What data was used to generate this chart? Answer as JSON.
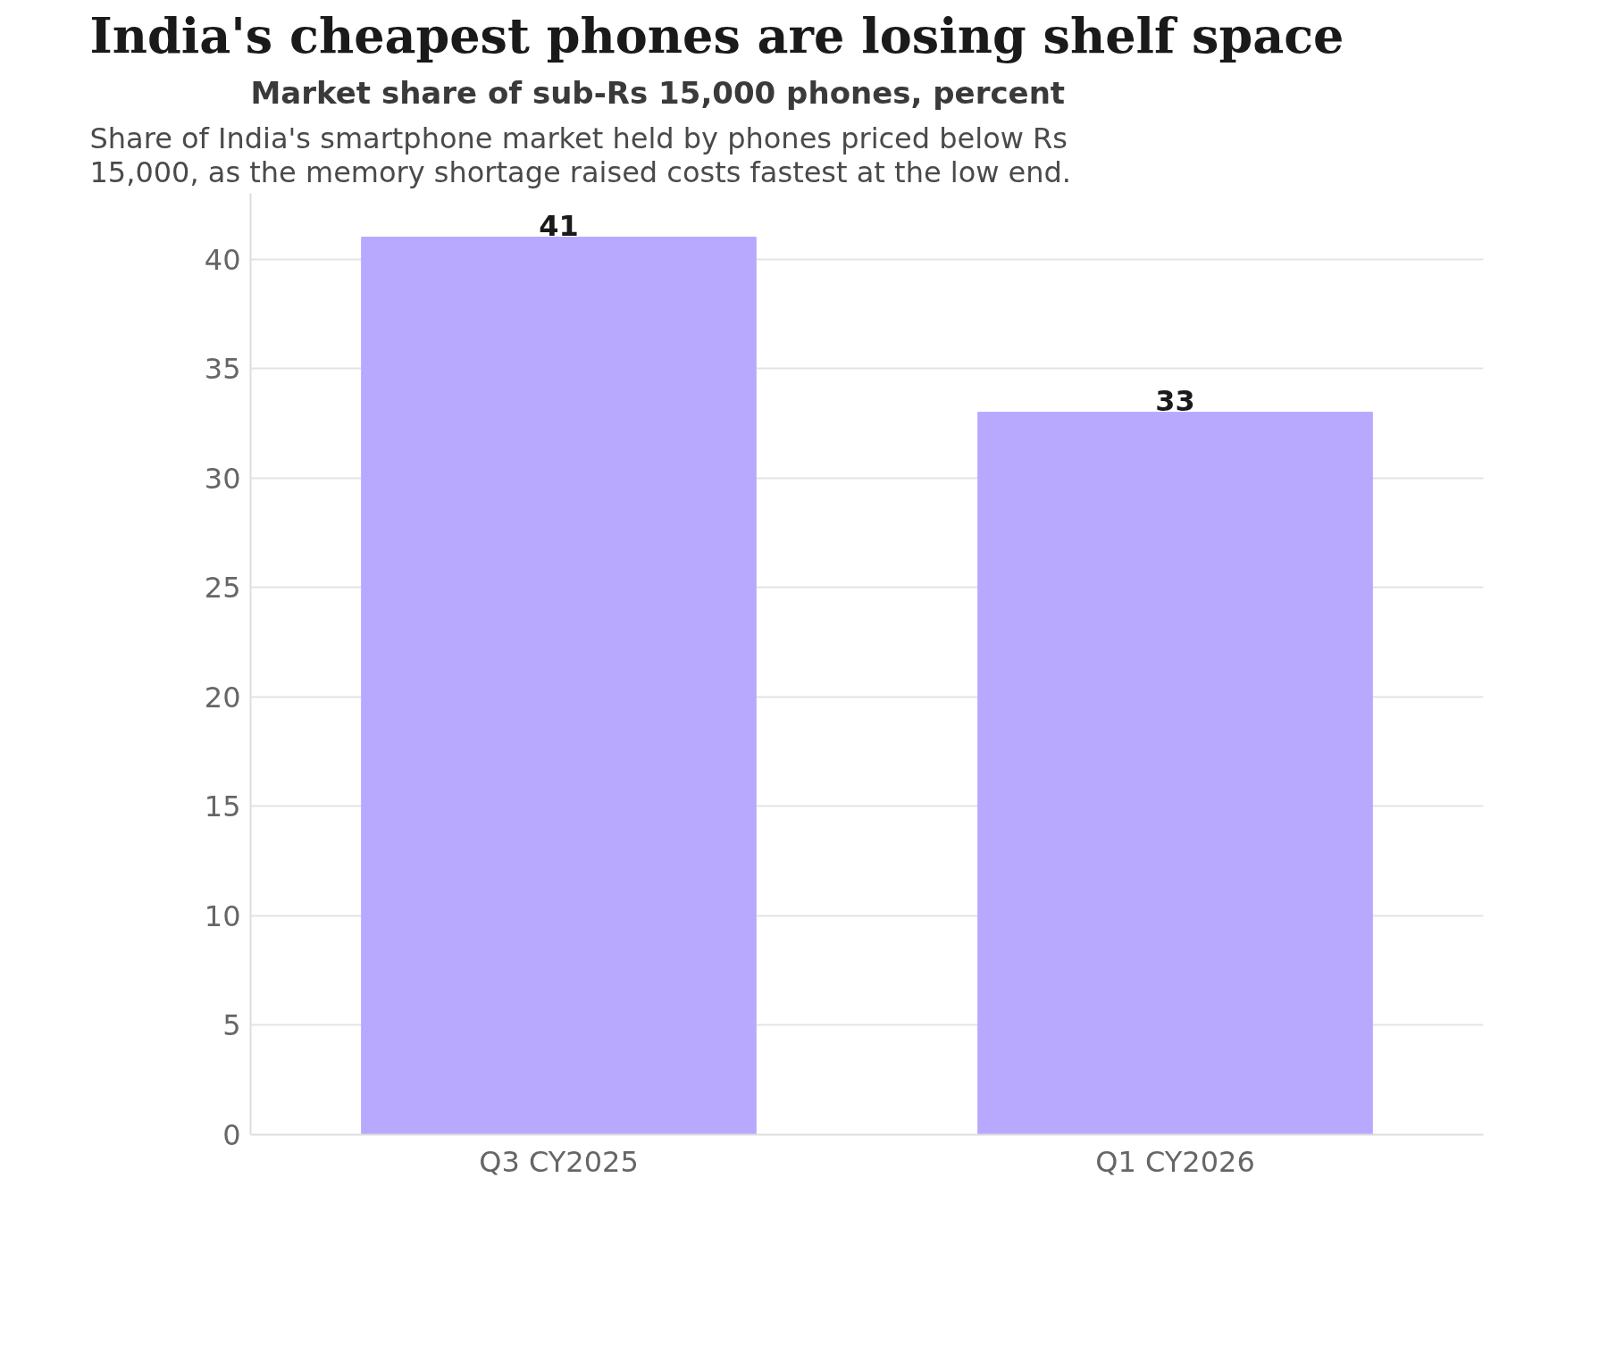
{
  "chart_data": {
    "type": "bar",
    "title": "India's cheapest phones are losing shelf space",
    "subtitle": "Share of India's smartphone market held by phones priced below Rs 15,000, as the memory shortage raised costs fastest at the low end.",
    "ylabel": "Market share of sub-Rs 15,000 phones, percent",
    "categories": [
      "Q3 CY2025",
      "Q1 CY2026"
    ],
    "values": [
      41,
      33
    ],
    "color": "#b8a9ff",
    "ylim": [
      0,
      43
    ],
    "yticks": [
      0,
      5,
      10,
      15,
      20,
      25,
      30,
      35,
      40
    ],
    "grid": "y",
    "data_labels": true
  }
}
